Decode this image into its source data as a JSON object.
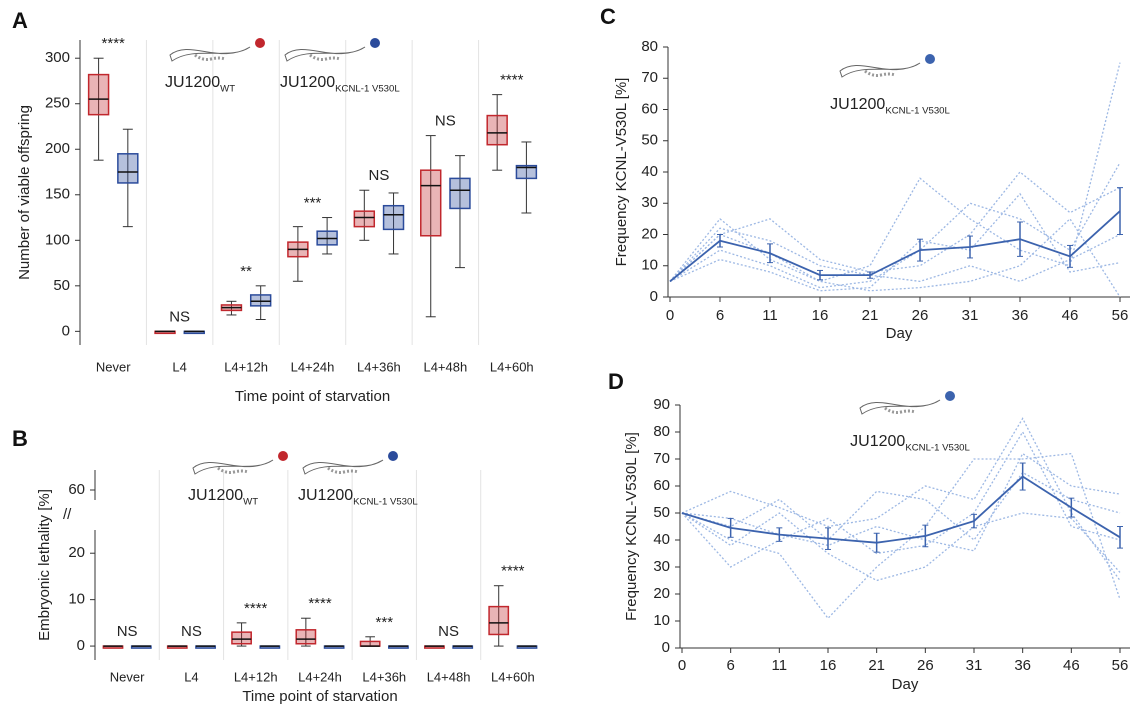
{
  "chart_data": [
    {
      "type": "box",
      "panel": "A",
      "ylabel": "Number of viable offspring",
      "xlabel": "Time point of starvation",
      "categories": [
        "Never",
        "L4",
        "L4+12h",
        "L4+24h",
        "L4+36h",
        "L4+48h",
        "L4+60h"
      ],
      "series": [
        {
          "name": "JU1200",
          "name_sub": "WT",
          "color": "#c1272d",
          "boxes": [
            [
              188,
              238,
              255,
              282,
              300
            ],
            [
              0,
              0,
              0,
              0,
              0
            ],
            [
              18,
              23,
              26,
              29,
              33
            ],
            [
              55,
              82,
              90,
              98,
              115
            ],
            [
              100,
              115,
              125,
              132,
              155
            ],
            [
              16,
              105,
              160,
              177,
              215
            ],
            [
              177,
              205,
              218,
              237,
              260
            ]
          ]
        },
        {
          "name": "JU1200",
          "name_sub": "KCNL-1 V530L",
          "color": "#2b4b9b",
          "boxes": [
            [
              115,
              163,
              175,
              195,
              222
            ],
            [
              0,
              0,
              0,
              0,
              0
            ],
            [
              13,
              28,
              33,
              40,
              50
            ],
            [
              85,
              95,
              102,
              110,
              125
            ],
            [
              85,
              112,
              128,
              138,
              152
            ],
            [
              70,
              135,
              155,
              168,
              193
            ],
            [
              130,
              168,
              180,
              182,
              208
            ]
          ]
        }
      ],
      "annotations": [
        "****",
        "NS",
        "**",
        "***",
        "NS",
        "NS",
        "****"
      ],
      "ylim": [
        -15,
        320
      ],
      "yticks": [
        0,
        50,
        100,
        150,
        200,
        250,
        300
      ]
    },
    {
      "type": "box",
      "panel": "B",
      "ylabel": "Embryonic lethality [%]",
      "xlabel": "Time point of starvation",
      "categories": [
        "Never",
        "L4",
        "L4+12h",
        "L4+24h",
        "L4+36h",
        "L4+48h",
        "L4+60h"
      ],
      "series": [
        {
          "name": "JU1200",
          "name_sub": "WT",
          "color": "#c1272d",
          "boxes": [
            [
              0,
              0,
              0,
              0,
              0
            ],
            [
              0,
              0,
              0,
              0,
              0
            ],
            [
              0,
              0.5,
              1.5,
              3,
              5
            ],
            [
              0,
              0.5,
              1.5,
              3.5,
              6
            ],
            [
              0,
              0,
              0,
              1,
              2
            ],
            [
              0,
              0,
              0,
              0,
              0
            ],
            [
              0,
              2.5,
              5,
              8.5,
              13
            ]
          ]
        },
        {
          "name": "JU1200",
          "name_sub": "KCNL-1 V530L",
          "color": "#2b4b9b",
          "boxes": [
            [
              0,
              0,
              0,
              0,
              0
            ],
            [
              0,
              0,
              0,
              0,
              0
            ],
            [
              0,
              0,
              0,
              0,
              0
            ],
            [
              0,
              0,
              0,
              0,
              0
            ],
            [
              0,
              0,
              0,
              0,
              0
            ],
            [
              0,
              0,
              0,
              0,
              0
            ],
            [
              0,
              0,
              0,
              0,
              0
            ]
          ]
        }
      ],
      "annotations": [
        "NS",
        "NS",
        "****",
        "****",
        "***",
        "NS",
        "****"
      ],
      "ylim": [
        -3,
        66
      ],
      "ybreak": [
        25,
        57
      ],
      "yticks": [
        0,
        10,
        20,
        60
      ]
    },
    {
      "type": "line",
      "panel": "C",
      "ylabel": "Frequency KCNL-V530L [%]",
      "xlabel": "Day",
      "legend": {
        "name": "JU1200",
        "name_sub": "KCNL-1 V530L"
      },
      "categories": [
        "0",
        "6",
        "11",
        "16",
        "21",
        "26",
        "31",
        "36",
        "46",
        "56"
      ],
      "series": [
        {
          "color": "#3c63ae",
          "values": [
            5,
            18,
            14,
            7,
            7,
            15,
            16,
            18.5,
            13,
            27.5
          ],
          "errors": [
            0,
            2,
            3,
            1.5,
            1,
            3.5,
            3.5,
            5.5,
            3.5,
            7.5
          ]
        }
      ],
      "replicate_color": "#9db8e4",
      "replicates": [
        [
          5,
          25,
          12,
          5,
          10,
          38,
          25,
          15,
          10,
          75
        ],
        [
          5,
          20,
          25,
          12,
          8,
          10,
          20,
          40,
          27,
          35
        ],
        [
          5,
          15,
          10,
          3,
          5,
          15,
          30,
          25,
          15,
          43
        ],
        [
          5,
          22,
          18,
          10,
          7,
          5,
          10,
          5,
          12,
          20
        ],
        [
          5,
          12,
          8,
          2,
          3,
          18,
          15,
          33,
          8,
          11
        ],
        [
          5,
          20,
          14,
          5,
          2,
          3,
          5,
          10,
          25,
          0
        ]
      ],
      "ylim": [
        0,
        80
      ],
      "yticks": [
        0,
        10,
        20,
        30,
        40,
        50,
        60,
        70,
        80
      ]
    },
    {
      "type": "line",
      "panel": "D",
      "ylabel": "Frequency KCNL-V530L [%]",
      "xlabel": "Day",
      "legend": {
        "name": "JU1200",
        "name_sub": "KCNL-1 V530L"
      },
      "categories": [
        "0",
        "6",
        "11",
        "16",
        "21",
        "26",
        "31",
        "36",
        "46",
        "56"
      ],
      "series": [
        {
          "color": "#3c63ae",
          "values": [
            50,
            44.5,
            42,
            40.5,
            39,
            41.5,
            47,
            63.5,
            52,
            41
          ],
          "errors": [
            0,
            3.5,
            2.5,
            4,
            3.5,
            4,
            2.5,
            5,
            3.5,
            4
          ]
        }
      ],
      "replicate_color": "#9db8e4",
      "replicates": [
        [
          50,
          58,
          52,
          45,
          48,
          60,
          55,
          85,
          50,
          25
        ],
        [
          50,
          40,
          35,
          11,
          30,
          45,
          70,
          70,
          72,
          18
        ],
        [
          50,
          30,
          40,
          48,
          35,
          38,
          50,
          80,
          45,
          40
        ],
        [
          50,
          45,
          55,
          40,
          58,
          55,
          40,
          65,
          55,
          50
        ],
        [
          50,
          38,
          50,
          35,
          25,
          30,
          45,
          50,
          48,
          28
        ],
        [
          50,
          48,
          42,
          38,
          45,
          40,
          36,
          72,
          60,
          57
        ]
      ],
      "ylim": [
        0,
        90
      ],
      "yticks": [
        0,
        10,
        20,
        30,
        40,
        50,
        60,
        70,
        80,
        90
      ]
    }
  ]
}
